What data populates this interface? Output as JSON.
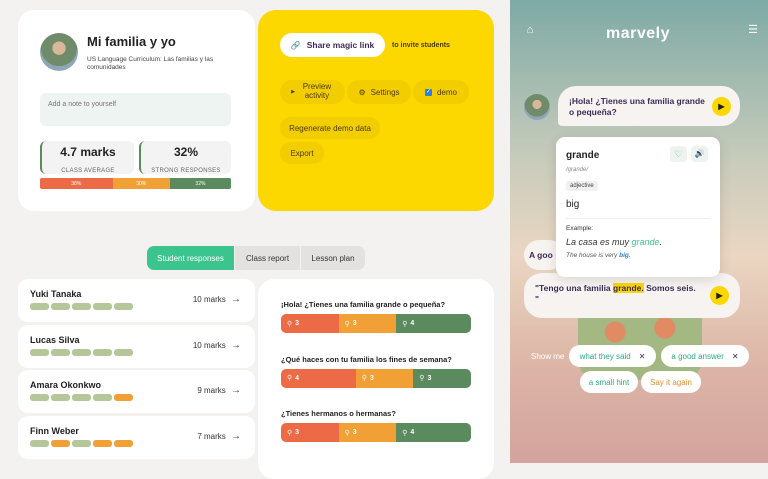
{
  "lesson": {
    "title": "Mi familia y yo",
    "subtitle": "US Language Curriculum: Las familias y las comunidades",
    "note_placeholder": "Add a note to yourself",
    "class_average": "4.7 marks",
    "class_average_label": "CLASS AVERAGE",
    "strong": "32%",
    "strong_label": "STRONG RESPONSES",
    "distribution": [
      {
        "label": "38%",
        "value": 38,
        "color": "#ec6a45"
      },
      {
        "label": "30%",
        "value": 30,
        "color": "#f0a035"
      },
      {
        "label": "32%",
        "value": 32,
        "color": "#5a8a5e"
      }
    ]
  },
  "actions": {
    "share": "Share magic link",
    "share_hint": "to invite students",
    "preview": "Preview activity",
    "settings": "Settings",
    "demo": "demo",
    "demo_checked": true,
    "regenerate": "Regenerate demo data",
    "export": "Export"
  },
  "tabs": [
    "Student responses",
    "Class report",
    "Lesson plan"
  ],
  "students": [
    {
      "name": "Yuki Tanaka",
      "marks": "10 marks",
      "bars": [
        "g",
        "g",
        "g",
        "g",
        "g"
      ]
    },
    {
      "name": "Lucas Silva",
      "marks": "10 marks",
      "bars": [
        "g",
        "g",
        "g",
        "g",
        "g"
      ]
    },
    {
      "name": "Amara Okonkwo",
      "marks": "9 marks",
      "bars": [
        "g",
        "g",
        "g",
        "g",
        "o"
      ]
    },
    {
      "name": "Finn Weber",
      "marks": "7 marks",
      "bars": [
        "g",
        "o",
        "g",
        "o",
        "o"
      ]
    }
  ],
  "questions": [
    {
      "text": "¡Hola! ¿Tienes una familia grande o pequeña?",
      "counts": [
        3,
        3,
        4
      ]
    },
    {
      "text": "¿Qué haces con tu familia los fines de semana?",
      "counts": [
        4,
        3,
        3
      ]
    },
    {
      "text": "¿Tienes hermanos o hermanas?",
      "counts": [
        3,
        3,
        4
      ]
    }
  ],
  "app": {
    "logo": "marvely",
    "prompt": "¡Hola! ¿Tienes una familia grande o pequeña?",
    "word": {
      "term": "grande",
      "phonetic": "/grande/",
      "pos": "adjective",
      "meaning": "big",
      "example_label": "Example:",
      "example_pre": "La casa es muy ",
      "example_word": "grande",
      "example_post": ".",
      "translation_pre": "The house is very ",
      "translation_word": "big",
      "translation_post": "."
    },
    "partial_bubble": "A goo",
    "answer_pre": "\"Tengo una familia ",
    "answer_hl": "grande.",
    "answer_post": " Somos seis. \"",
    "show_me": "Show me",
    "chips": [
      "what they said",
      "a good answer",
      "a small hint",
      "Say it again"
    ]
  }
}
